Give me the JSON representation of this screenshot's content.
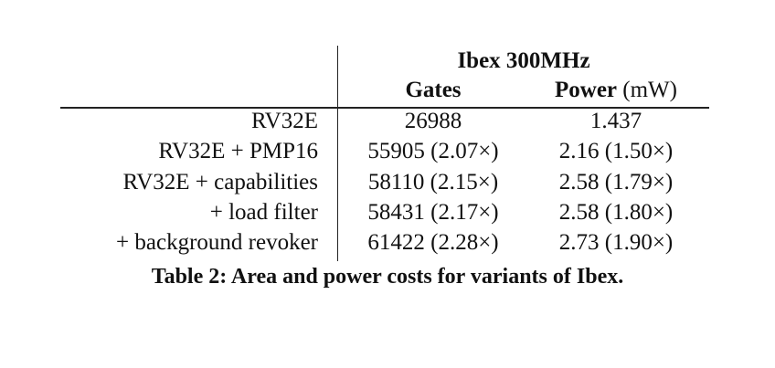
{
  "table": {
    "group_header": "Ibex  300MHz",
    "columns": {
      "gates": "Gates",
      "power_bold": "Power",
      "power_unit": " (mW)"
    },
    "rows": [
      {
        "label": "RV32E",
        "gates": "26988",
        "power": "1.437"
      },
      {
        "label": "RV32E + PMP16",
        "gates": "55905 (2.07×)",
        "power": "2.16 (1.50×)"
      },
      {
        "label": "RV32E + capabilities",
        "gates": "58110 (2.15×)",
        "power": "2.58 (1.79×)"
      },
      {
        "label": "+ load filter",
        "gates": "58431 (2.17×)",
        "power": "2.58 (1.80×)"
      },
      {
        "label": "+ background revoker",
        "gates": "61422 (2.28×)",
        "power": "2.73 (1.90×)"
      }
    ],
    "caption": "Table 2: Area and power costs for variants of Ibex."
  }
}
